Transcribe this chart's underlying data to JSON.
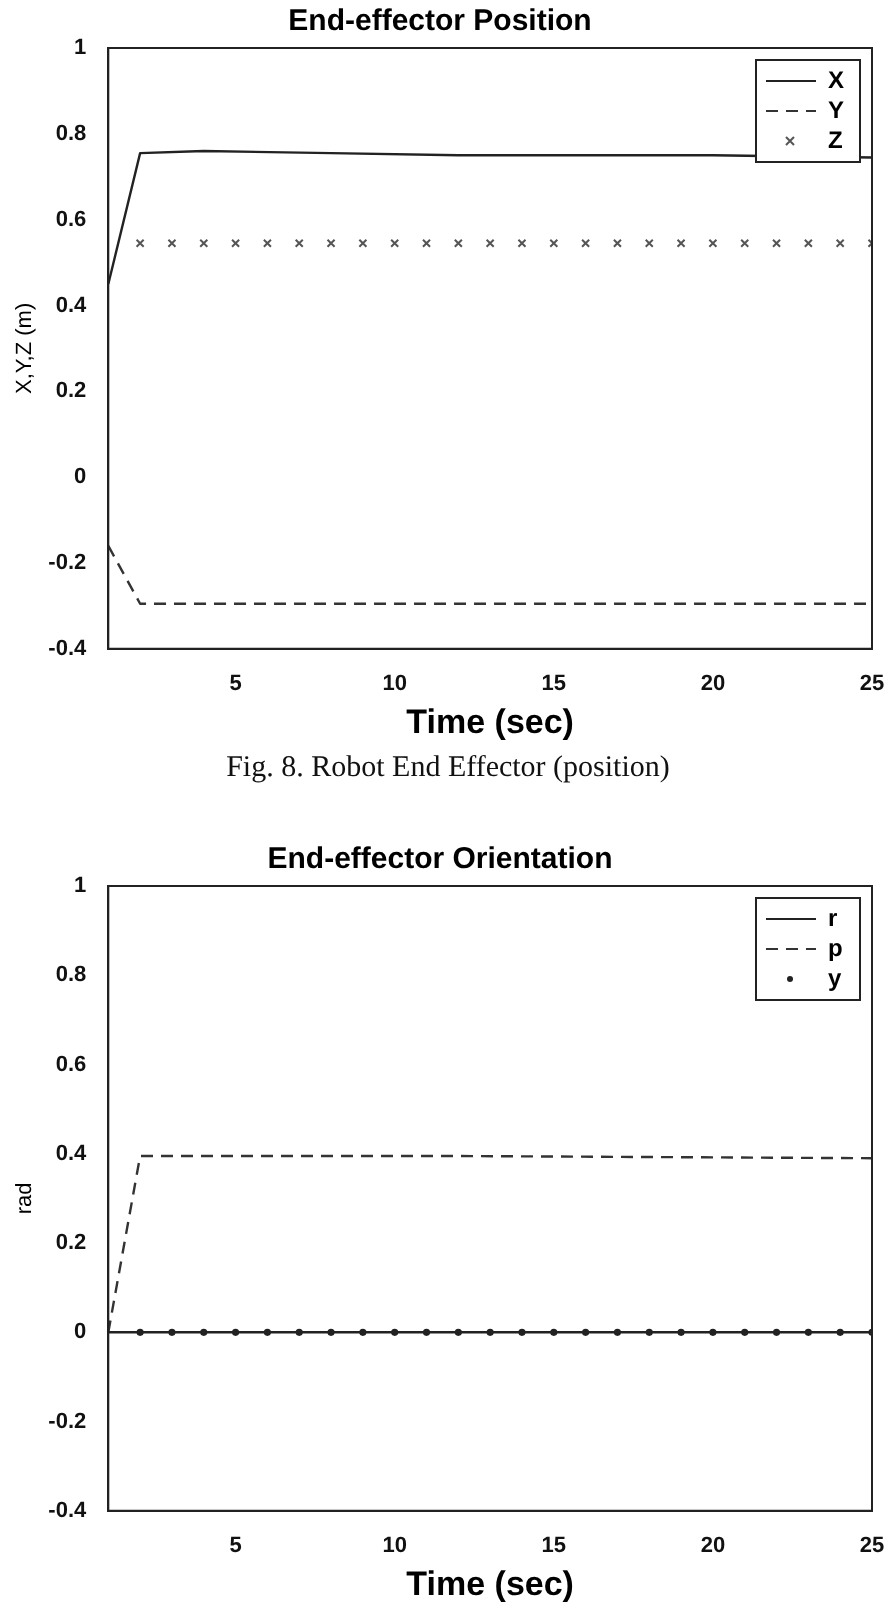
{
  "chart_data": [
    {
      "type": "line",
      "title": "End-effector Position",
      "xlabel": "Time (sec)",
      "ylabel": "X,Y,Z (m)",
      "xlim": [
        1,
        25
      ],
      "xticks": [
        5,
        10,
        15,
        20,
        25
      ],
      "ylim": [
        -0.4,
        1
      ],
      "yticks": [
        -0.4,
        -0.2,
        0,
        0.2,
        0.4,
        0.6,
        0.8,
        1
      ],
      "grid": false,
      "legend": "top right",
      "series": [
        {
          "name": "X",
          "type": "line",
          "line_style": "solid",
          "color": "#222222",
          "x": [
            1,
            2,
            4,
            8,
            12,
            16,
            20,
            25
          ],
          "values": [
            0.45,
            0.755,
            0.76,
            0.755,
            0.75,
            0.75,
            0.75,
            0.745
          ]
        },
        {
          "name": "Y",
          "type": "line",
          "line_style": "dashed",
          "color": "#333333",
          "x": [
            1,
            2,
            25
          ],
          "values": [
            -0.16,
            -0.295,
            -0.295
          ]
        },
        {
          "name": "Z",
          "type": "scatter",
          "marker": "cross",
          "color": "#555555",
          "x": [
            2,
            3,
            4,
            5,
            6,
            7,
            8,
            9,
            10,
            11,
            12,
            13,
            14,
            15,
            16,
            17,
            18,
            19,
            20,
            21,
            22,
            23,
            24,
            25
          ],
          "values": [
            0.545,
            0.545,
            0.545,
            0.545,
            0.545,
            0.545,
            0.545,
            0.545,
            0.545,
            0.545,
            0.545,
            0.545,
            0.545,
            0.545,
            0.545,
            0.545,
            0.545,
            0.545,
            0.545,
            0.545,
            0.545,
            0.545,
            0.545,
            0.545
          ]
        }
      ],
      "annotations": [
        "Fig. 8. Robot End Effector (position)"
      ]
    },
    {
      "type": "line",
      "title": "End-effector Orientation",
      "xlabel": "Time (sec)",
      "ylabel": "rad",
      "xlim": [
        1,
        25
      ],
      "xticks": [
        5,
        10,
        15,
        20,
        25
      ],
      "ylim": [
        -0.4,
        1
      ],
      "yticks": [
        -0.4,
        -0.2,
        0,
        0.2,
        0.4,
        0.6,
        0.8,
        1
      ],
      "grid": false,
      "legend": "top right",
      "series": [
        {
          "name": "r",
          "type": "line",
          "line_style": "solid",
          "color": "#222222",
          "x": [
            1,
            25
          ],
          "values": [
            0,
            0
          ]
        },
        {
          "name": "p",
          "type": "line",
          "line_style": "dashed",
          "color": "#333333",
          "x": [
            1,
            2,
            12,
            25
          ],
          "values": [
            0,
            0.395,
            0.395,
            0.39
          ]
        },
        {
          "name": "y",
          "type": "scatter",
          "marker": "circle",
          "color": "#222222",
          "x": [
            2,
            3,
            4,
            5,
            6,
            7,
            8,
            9,
            10,
            11,
            12,
            13,
            14,
            15,
            16,
            17,
            18,
            19,
            20,
            21,
            22,
            23,
            24,
            25
          ],
          "values": [
            0,
            0,
            0,
            0,
            0,
            0,
            0,
            0,
            0,
            0,
            0,
            0,
            0,
            0,
            0,
            0,
            0,
            0,
            0,
            0,
            0,
            0,
            0,
            0
          ]
        }
      ]
    }
  ]
}
